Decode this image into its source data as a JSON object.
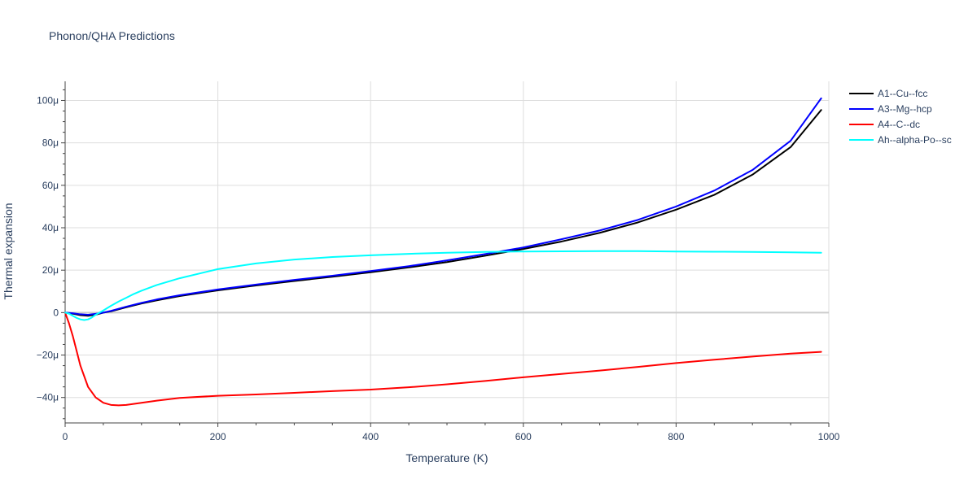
{
  "chart_data": {
    "type": "line",
    "title": "Phonon/QHA Predictions",
    "xlabel": "Temperature (K)",
    "ylabel": "Thermal expansion",
    "xlim": [
      0,
      1000
    ],
    "ylim": [
      -52,
      109
    ],
    "x_ticks": [
      0,
      200,
      400,
      600,
      800,
      1000
    ],
    "x_tick_labels": [
      "0",
      "200",
      "400",
      "600",
      "800",
      "1000"
    ],
    "y_ticks": [
      -40,
      -20,
      0,
      20,
      40,
      60,
      80,
      100
    ],
    "y_tick_labels": [
      "−40μ",
      "−20μ",
      "0",
      "20μ",
      "40μ",
      "60μ",
      "80μ",
      "100μ"
    ],
    "grid": true,
    "legend_position": "top-right",
    "series": [
      {
        "name": "A1--Cu--fcc",
        "color": "#000000",
        "x": [
          0,
          10,
          20,
          30,
          40,
          50,
          60,
          80,
          100,
          120,
          150,
          200,
          250,
          300,
          350,
          400,
          450,
          500,
          550,
          600,
          650,
          700,
          750,
          800,
          850,
          900,
          950,
          990
        ],
        "y": [
          0,
          -0.5,
          -1.2,
          -1.5,
          -1.0,
          0,
          0.6,
          2.5,
          4.3,
          5.8,
          7.8,
          10.5,
          12.8,
          14.9,
          16.9,
          19.0,
          21.3,
          23.8,
          26.8,
          30.0,
          33.5,
          37.6,
          42.5,
          48.5,
          55.5,
          65.0,
          78.0,
          95.5
        ]
      },
      {
        "name": "A3--Mg--hcp",
        "color": "#0000ff",
        "x": [
          0,
          10,
          20,
          30,
          40,
          50,
          60,
          80,
          100,
          120,
          150,
          200,
          250,
          300,
          350,
          400,
          450,
          500,
          550,
          600,
          650,
          700,
          750,
          800,
          850,
          900,
          950,
          990
        ],
        "y": [
          0,
          -0.3,
          -0.8,
          -1.0,
          -0.6,
          0,
          0.8,
          2.8,
          4.6,
          6.2,
          8.2,
          10.9,
          13.2,
          15.4,
          17.4,
          19.6,
          21.9,
          24.6,
          27.6,
          30.7,
          34.6,
          38.7,
          43.7,
          50.0,
          57.5,
          67.2,
          81.0,
          101.0
        ]
      },
      {
        "name": "A4--C--dc",
        "color": "#ff0000",
        "x": [
          0,
          5,
          10,
          15,
          20,
          25,
          30,
          40,
          50,
          60,
          70,
          80,
          100,
          120,
          150,
          200,
          250,
          300,
          350,
          400,
          450,
          500,
          550,
          600,
          650,
          700,
          750,
          800,
          850,
          900,
          950,
          990
        ],
        "y": [
          0,
          -5,
          -11,
          -18,
          -25,
          -30,
          -35,
          -40,
          -42.5,
          -43.5,
          -43.7,
          -43.5,
          -42.5,
          -41.5,
          -40.2,
          -39.2,
          -38.6,
          -37.8,
          -37.0,
          -36.3,
          -35.2,
          -33.8,
          -32.2,
          -30.5,
          -28.9,
          -27.3,
          -25.6,
          -23.8,
          -22.2,
          -20.7,
          -19.3,
          -18.5
        ]
      },
      {
        "name": "Ah--alpha-Po--sc",
        "color": "#00ffff",
        "x": [
          0,
          5,
          10,
          15,
          20,
          25,
          30,
          35,
          40,
          50,
          60,
          70,
          80,
          90,
          100,
          120,
          150,
          200,
          250,
          300,
          350,
          400,
          450,
          500,
          550,
          600,
          650,
          700,
          750,
          800,
          850,
          900,
          950,
          990
        ],
        "y": [
          0,
          -0.5,
          -1.5,
          -2.5,
          -3.2,
          -3.5,
          -3.2,
          -2.3,
          -1.0,
          1.0,
          3.2,
          5.2,
          7.0,
          8.8,
          10.3,
          13.0,
          16.2,
          20.5,
          23.2,
          25.0,
          26.2,
          27.0,
          27.7,
          28.2,
          28.6,
          28.8,
          28.9,
          29.0,
          29.0,
          28.8,
          28.7,
          28.6,
          28.4,
          28.2
        ]
      }
    ]
  }
}
